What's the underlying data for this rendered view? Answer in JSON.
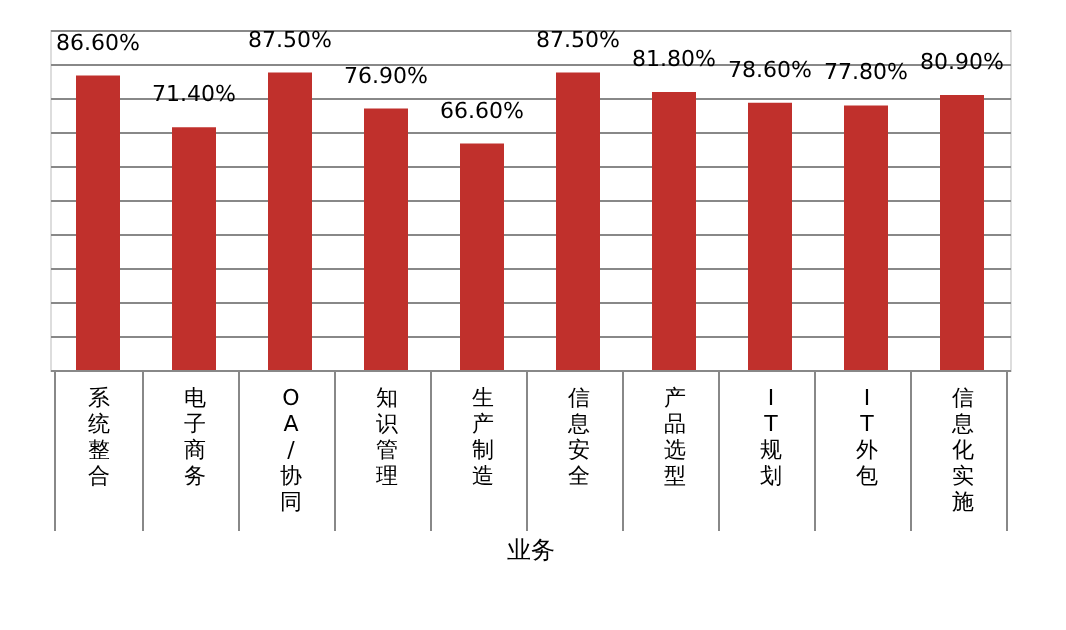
{
  "chart_data": {
    "type": "bar",
    "xlabel": "业务",
    "categories": [
      "系统整合",
      "电子商务",
      "OA/协同",
      "知识管理",
      "生产制造",
      "信息安全",
      "产品选型",
      "IT规划",
      "IT外包",
      "信息化实施"
    ],
    "values": [
      86.6,
      71.4,
      87.5,
      76.9,
      66.6,
      87.5,
      81.8,
      78.6,
      77.8,
      80.9
    ],
    "value_labels": [
      "86.60%",
      "71.40%",
      "87.50%",
      "76.90%",
      "66.60%",
      "87.50%",
      "81.80%",
      "78.60%",
      "77.80%",
      "80.90%"
    ],
    "color": "#c0302c",
    "ylim": [
      0,
      100
    ],
    "yticks": [
      {
        "value": 0,
        "label": null
      },
      {
        "value": 10,
        "label": null
      },
      {
        "value": 20,
        "label": null
      },
      {
        "value": 30,
        "label": null
      },
      {
        "value": 40,
        "label": null
      },
      {
        "value": 50,
        "label": null
      },
      {
        "value": 60,
        "label": null
      },
      {
        "value": 70,
        "label": null
      },
      {
        "value": 80,
        "label": null
      },
      {
        "value": 90,
        "label": null
      },
      {
        "value": 100,
        "label": null
      }
    ],
    "grid": "y",
    "tick_labels": "x"
  }
}
